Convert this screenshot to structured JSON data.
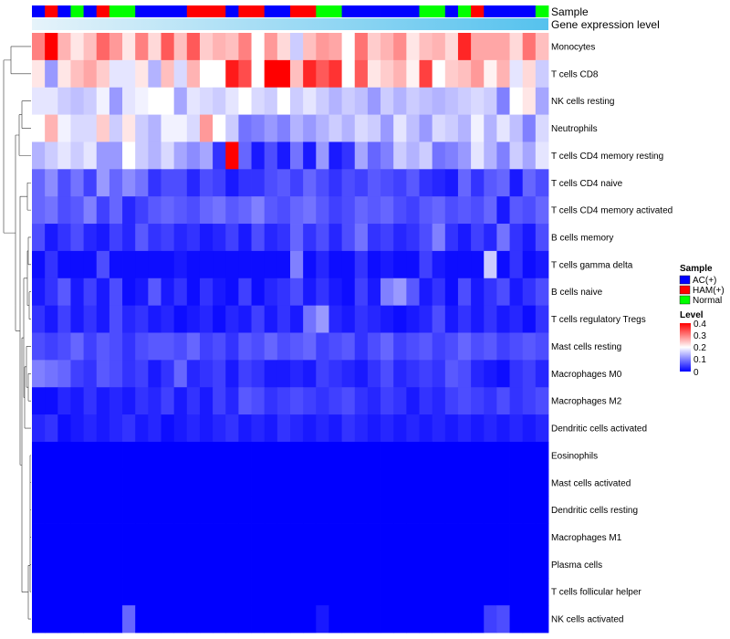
{
  "chart_data": {
    "type": "heatmap",
    "title": "",
    "annotation_tracks": [
      "Sample",
      "Gene expression level"
    ],
    "rows": [
      "Monocytes",
      "T cells CD8",
      "NK cells resting",
      "Neutrophils",
      "T cells CD4 memory resting",
      "T cells CD4 naive",
      "T cells CD4 memory activated",
      "B cells memory",
      "T cells gamma delta",
      "B cells naive",
      "T cells regulatory  Tregs",
      "Mast cells resting",
      "Macrophages M0",
      "Macrophages M2",
      "Dendritic cells activated",
      "Eosinophils",
      "Mast cells activated",
      "Dendritic cells resting",
      "Macrophages M1",
      "Plasma cells",
      "T cells follicular helper",
      "NK cells activated"
    ],
    "column_sample_groups": [
      "AC(+)",
      "HAM(+)",
      "AC(+)",
      "Normal",
      "AC(+)",
      "HAM(+)",
      "Normal",
      "Normal",
      "AC(+)",
      "AC(+)",
      "AC(+)",
      "AC(+)",
      "HAM(+)",
      "HAM(+)",
      "HAM(+)",
      "AC(+)",
      "HAM(+)",
      "HAM(+)",
      "AC(+)",
      "AC(+)",
      "HAM(+)",
      "HAM(+)",
      "Normal",
      "Normal",
      "AC(+)",
      "AC(+)",
      "AC(+)",
      "AC(+)",
      "AC(+)",
      "AC(+)",
      "Normal",
      "Normal",
      "AC(+)",
      "Normal",
      "HAM(+)",
      "AC(+)",
      "AC(+)",
      "AC(+)",
      "AC(+)",
      "Normal"
    ],
    "values": [
      [
        0.3,
        0.4,
        0.26,
        0.22,
        0.25,
        0.32,
        0.28,
        0.22,
        0.3,
        0.23,
        0.33,
        0.25,
        0.33,
        0.24,
        0.26,
        0.25,
        0.3,
        0.2,
        0.28,
        0.23,
        0.16,
        0.25,
        0.28,
        0.27,
        0.2,
        0.31,
        0.24,
        0.26,
        0.29,
        0.22,
        0.25,
        0.26,
        0.23,
        0.37,
        0.27,
        0.27,
        0.27,
        0.23,
        0.31,
        0.25
      ],
      [
        0.22,
        0.12,
        0.22,
        0.25,
        0.27,
        0.24,
        0.18,
        0.18,
        0.22,
        0.14,
        0.25,
        0.17,
        0.26,
        0.2,
        0.2,
        0.38,
        0.34,
        0.2,
        0.4,
        0.4,
        0.25,
        0.37,
        0.33,
        0.36,
        0.2,
        0.33,
        0.22,
        0.24,
        0.26,
        0.21,
        0.35,
        0.2,
        0.24,
        0.25,
        0.28,
        0.21,
        0.26,
        0.18,
        0.23,
        0.16
      ],
      [
        0.18,
        0.18,
        0.16,
        0.15,
        0.16,
        0.19,
        0.12,
        0.18,
        0.19,
        0.2,
        0.2,
        0.13,
        0.18,
        0.17,
        0.16,
        0.18,
        0.2,
        0.17,
        0.16,
        0.2,
        0.16,
        0.18,
        0.16,
        0.14,
        0.16,
        0.15,
        0.12,
        0.16,
        0.14,
        0.16,
        0.15,
        0.14,
        0.15,
        0.16,
        0.17,
        0.16,
        0.1,
        0.2,
        0.22,
        0.13
      ],
      [
        0.2,
        0.26,
        0.19,
        0.17,
        0.17,
        0.24,
        0.16,
        0.22,
        0.16,
        0.14,
        0.19,
        0.19,
        0.17,
        0.28,
        0.2,
        0.16,
        0.09,
        0.1,
        0.12,
        0.1,
        0.14,
        0.12,
        0.14,
        0.16,
        0.14,
        0.17,
        0.16,
        0.12,
        0.18,
        0.15,
        0.12,
        0.17,
        0.16,
        0.14,
        0.19,
        0.14,
        0.18,
        0.15,
        0.1,
        0.17
      ],
      [
        0.14,
        0.16,
        0.18,
        0.16,
        0.18,
        0.12,
        0.12,
        0.2,
        0.16,
        0.14,
        0.17,
        0.13,
        0.11,
        0.13,
        0.04,
        0.4,
        0.08,
        0.02,
        0.06,
        0.02,
        0.09,
        0.02,
        0.12,
        0.02,
        0.04,
        0.13,
        0.08,
        0.1,
        0.16,
        0.14,
        0.16,
        0.09,
        0.1,
        0.12,
        0.18,
        0.14,
        0.1,
        0.16,
        0.13,
        0.18
      ],
      [
        0.08,
        0.11,
        0.06,
        0.09,
        0.05,
        0.12,
        0.08,
        0.11,
        0.09,
        0.04,
        0.06,
        0.06,
        0.03,
        0.06,
        0.05,
        0.02,
        0.04,
        0.04,
        0.06,
        0.07,
        0.05,
        0.08,
        0.06,
        0.04,
        0.06,
        0.05,
        0.07,
        0.06,
        0.05,
        0.07,
        0.04,
        0.03,
        0.02,
        0.08,
        0.04,
        0.07,
        0.08,
        0.02,
        0.08,
        0.06
      ],
      [
        0.08,
        0.09,
        0.06,
        0.07,
        0.1,
        0.05,
        0.08,
        0.03,
        0.05,
        0.07,
        0.08,
        0.07,
        0.06,
        0.08,
        0.09,
        0.07,
        0.08,
        0.1,
        0.07,
        0.06,
        0.08,
        0.09,
        0.07,
        0.05,
        0.06,
        0.08,
        0.07,
        0.08,
        0.06,
        0.05,
        0.07,
        0.08,
        0.06,
        0.07,
        0.06,
        0.08,
        0.02,
        0.07,
        0.06,
        0.08
      ],
      [
        0.06,
        0.02,
        0.04,
        0.06,
        0.03,
        0.02,
        0.05,
        0.03,
        0.07,
        0.04,
        0.05,
        0.03,
        0.04,
        0.02,
        0.03,
        0.05,
        0.02,
        0.06,
        0.03,
        0.04,
        0.08,
        0.04,
        0.06,
        0.03,
        0.06,
        0.09,
        0.04,
        0.05,
        0.03,
        0.04,
        0.06,
        0.1,
        0.04,
        0.02,
        0.05,
        0.03,
        0.09,
        0.04,
        0.02,
        0.06
      ],
      [
        0.01,
        0.04,
        0.01,
        0.01,
        0.01,
        0.06,
        0.01,
        0.01,
        0.01,
        0.01,
        0.01,
        0.02,
        0.01,
        0.01,
        0.01,
        0.01,
        0.01,
        0.01,
        0.01,
        0.01,
        0.1,
        0.01,
        0.03,
        0.01,
        0.01,
        0.04,
        0.01,
        0.02,
        0.01,
        0.01,
        0.05,
        0.02,
        0.01,
        0.01,
        0.01,
        0.16,
        0.01,
        0.04,
        0.01,
        0.02
      ],
      [
        0.02,
        0.04,
        0.07,
        0.02,
        0.05,
        0.02,
        0.06,
        0.01,
        0.02,
        0.07,
        0.02,
        0.04,
        0.01,
        0.04,
        0.02,
        0.01,
        0.05,
        0.01,
        0.03,
        0.04,
        0.06,
        0.02,
        0.04,
        0.02,
        0.01,
        0.05,
        0.02,
        0.1,
        0.12,
        0.07,
        0.02,
        0.04,
        0.01,
        0.06,
        0.02,
        0.04,
        0.06,
        0.02,
        0.04,
        0.06
      ],
      [
        0.04,
        0.02,
        0.05,
        0.02,
        0.04,
        0.02,
        0.06,
        0.03,
        0.04,
        0.02,
        0.03,
        0.01,
        0.02,
        0.03,
        0.01,
        0.03,
        0.02,
        0.05,
        0.02,
        0.04,
        0.02,
        0.09,
        0.12,
        0.03,
        0.02,
        0.04,
        0.03,
        0.02,
        0.01,
        0.02,
        0.03,
        0.06,
        0.02,
        0.04,
        0.02,
        0.04,
        0.02,
        0.03,
        0.01,
        0.04
      ],
      [
        0.06,
        0.05,
        0.06,
        0.08,
        0.05,
        0.07,
        0.06,
        0.04,
        0.06,
        0.07,
        0.07,
        0.06,
        0.08,
        0.05,
        0.06,
        0.04,
        0.07,
        0.06,
        0.08,
        0.06,
        0.07,
        0.08,
        0.05,
        0.06,
        0.07,
        0.04,
        0.06,
        0.08,
        0.05,
        0.06,
        0.07,
        0.05,
        0.06,
        0.08,
        0.06,
        0.07,
        0.05,
        0.06,
        0.07,
        0.06
      ],
      [
        0.1,
        0.09,
        0.08,
        0.05,
        0.04,
        0.07,
        0.06,
        0.04,
        0.05,
        0.02,
        0.04,
        0.08,
        0.03,
        0.04,
        0.05,
        0.02,
        0.05,
        0.04,
        0.02,
        0.02,
        0.03,
        0.02,
        0.05,
        0.04,
        0.03,
        0.02,
        0.04,
        0.06,
        0.03,
        0.04,
        0.05,
        0.04,
        0.07,
        0.06,
        0.03,
        0.02,
        0.01,
        0.04,
        0.05,
        0.03
      ],
      [
        0.01,
        0.01,
        0.03,
        0.02,
        0.04,
        0.02,
        0.03,
        0.02,
        0.04,
        0.03,
        0.05,
        0.02,
        0.04,
        0.02,
        0.05,
        0.03,
        0.07,
        0.06,
        0.04,
        0.05,
        0.06,
        0.05,
        0.04,
        0.05,
        0.06,
        0.04,
        0.03,
        0.05,
        0.04,
        0.02,
        0.04,
        0.03,
        0.05,
        0.06,
        0.05,
        0.04,
        0.06,
        0.04,
        0.05,
        0.06
      ],
      [
        0.03,
        0.04,
        0.01,
        0.02,
        0.03,
        0.02,
        0.03,
        0.04,
        0.02,
        0.03,
        0.01,
        0.02,
        0.03,
        0.02,
        0.03,
        0.04,
        0.02,
        0.03,
        0.02,
        0.04,
        0.03,
        0.02,
        0.03,
        0.02,
        0.04,
        0.03,
        0.02,
        0.03,
        0.02,
        0.03,
        0.02,
        0.03,
        0.02,
        0.03,
        0.02,
        0.03,
        0.02,
        0.03,
        0.02,
        0.03
      ],
      [
        0,
        0,
        0,
        0,
        0,
        0,
        0,
        0,
        0,
        0,
        0,
        0,
        0,
        0,
        0,
        0,
        0,
        0,
        0,
        0,
        0,
        0,
        0,
        0,
        0,
        0,
        0,
        0,
        0,
        0,
        0,
        0,
        0,
        0,
        0,
        0,
        0,
        0,
        0,
        0
      ],
      [
        0,
        0,
        0,
        0,
        0,
        0,
        0,
        0,
        0,
        0,
        0,
        0,
        0,
        0,
        0,
        0,
        0,
        0,
        0,
        0,
        0,
        0,
        0,
        0,
        0,
        0,
        0,
        0,
        0,
        0,
        0,
        0,
        0,
        0,
        0,
        0,
        0,
        0,
        0,
        0
      ],
      [
        0,
        0,
        0,
        0,
        0,
        0,
        0,
        0,
        0,
        0,
        0,
        0,
        0,
        0,
        0,
        0,
        0,
        0,
        0,
        0,
        0,
        0,
        0,
        0,
        0,
        0,
        0,
        0,
        0,
        0,
        0,
        0,
        0,
        0,
        0,
        0,
        0,
        0,
        0,
        0
      ],
      [
        0,
        0,
        0,
        0,
        0,
        0,
        0,
        0,
        0,
        0,
        0,
        0,
        0,
        0,
        0,
        0,
        0,
        0,
        0,
        0,
        0,
        0,
        0,
        0,
        0,
        0,
        0,
        0,
        0,
        0,
        0,
        0,
        0,
        0,
        0,
        0,
        0,
        0,
        0,
        0
      ],
      [
        0,
        0,
        0,
        0,
        0,
        0,
        0,
        0,
        0,
        0,
        0,
        0,
        0,
        0,
        0,
        0,
        0,
        0,
        0,
        0,
        0,
        0,
        0,
        0,
        0,
        0,
        0,
        0,
        0,
        0,
        0,
        0,
        0,
        0,
        0,
        0,
        0,
        0,
        0,
        0
      ],
      [
        0,
        0,
        0,
        0,
        0,
        0,
        0,
        0,
        0,
        0,
        0,
        0,
        0,
        0,
        0,
        0,
        0,
        0,
        0,
        0,
        0,
        0,
        0,
        0,
        0,
        0,
        0,
        0,
        0,
        0,
        0,
        0,
        0,
        0,
        0,
        0,
        0,
        0,
        0,
        0
      ],
      [
        0,
        0,
        0,
        0,
        0,
        0,
        0,
        0.08,
        0,
        0,
        0,
        0,
        0,
        0,
        0,
        0,
        0,
        0,
        0,
        0,
        0,
        0,
        0.02,
        0,
        0,
        0,
        0,
        0,
        0,
        0,
        0,
        0,
        0,
        0,
        0,
        0.05,
        0.06,
        0,
        0,
        0
      ]
    ],
    "scale": {
      "min": 0,
      "max": 0.4,
      "low_color": "#0000ff",
      "mid_color": "#ffffff",
      "high_color": "#ff0000",
      "mid_value": 0.2
    },
    "legend": {
      "sample_title": "Sample",
      "sample_entries": [
        {
          "label": "AC(+)",
          "color": "#0000ff"
        },
        {
          "label": "HAM(+)",
          "color": "#ff0000"
        },
        {
          "label": "Normal",
          "color": "#00ff00"
        }
      ],
      "level_title": "Level",
      "level_ticks": [
        "0.4",
        "0.3",
        "0.2",
        "0.1",
        "0"
      ],
      "placement": "right"
    },
    "dendrogram": "rows"
  }
}
